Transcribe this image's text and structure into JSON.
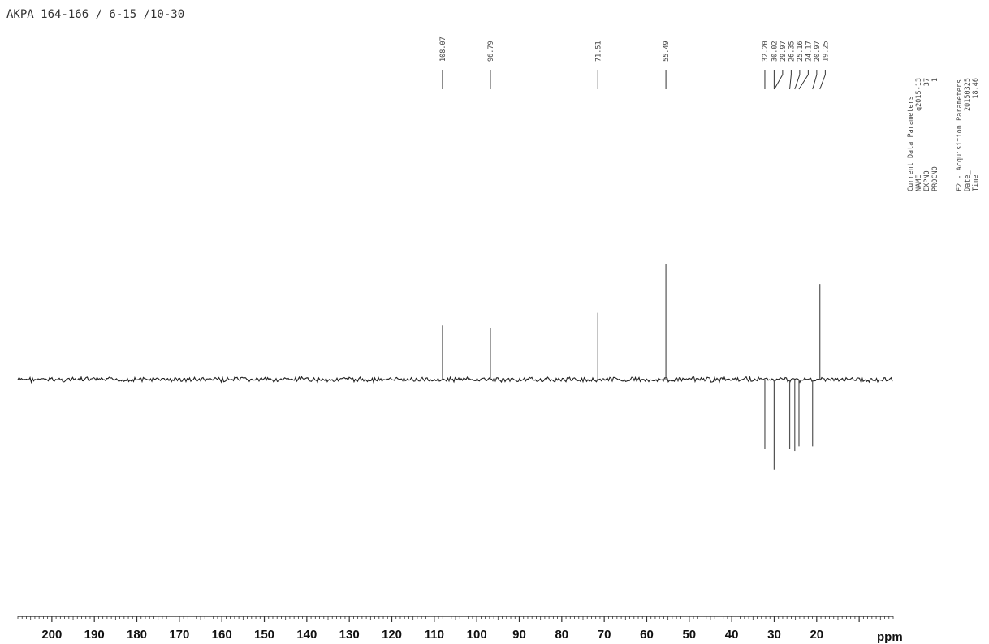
{
  "header": {
    "title": "AKPA 164-166 / 6-15 /10-30"
  },
  "parameters": {
    "section1_title": "Current Data Parameters",
    "name_label": "NAME",
    "name_value": "q2015-13",
    "expno_label": "EXPNO",
    "expno_value": "37",
    "procno_label": "PROCNO",
    "procno_value": "1",
    "section2_title": "F2 - Acquisition Parameters",
    "date_label": "Date_",
    "date_value": "20150325",
    "time_label": "Time",
    "time_value": "18.46"
  },
  "chart_data": {
    "type": "line",
    "xlabel": "ppm",
    "xlim": [
      208,
      2
    ],
    "x_reversed": true,
    "tick_values": [
      200,
      190,
      180,
      170,
      160,
      150,
      140,
      130,
      120,
      110,
      100,
      90,
      80,
      70,
      60,
      50,
      40,
      30,
      20
    ],
    "tick_labels": [
      "200",
      "190",
      "180",
      "170",
      "160",
      "150",
      "140",
      "130",
      "120",
      "110",
      "100",
      "90",
      "80",
      "70",
      "60",
      "50",
      "40",
      "30",
      "20"
    ],
    "grid": false,
    "peaks": [
      {
        "ppm": 108.07,
        "label": "108.07",
        "intensity": 0.47
      },
      {
        "ppm": 96.79,
        "label": "96.79",
        "intensity": 0.45
      },
      {
        "ppm": 71.51,
        "label": "71.51",
        "intensity": 0.58
      },
      {
        "ppm": 55.49,
        "label": "55.49",
        "intensity": 1.0
      },
      {
        "ppm": 32.2,
        "label": "32.20",
        "intensity": -0.6
      },
      {
        "ppm": 30.02,
        "label": "30.02",
        "intensity": -0.78
      },
      {
        "ppm": 29.97,
        "label": "29.97",
        "intensity": -0.7
      },
      {
        "ppm": 26.35,
        "label": "26.35",
        "intensity": -0.6
      },
      {
        "ppm": 25.16,
        "label": "25.16",
        "intensity": -0.62
      },
      {
        "ppm": 24.17,
        "label": "24.17",
        "intensity": -0.58
      },
      {
        "ppm": 20.97,
        "label": "20.97",
        "intensity": -0.58
      },
      {
        "ppm": 19.25,
        "label": "19.25",
        "intensity": 0.83
      }
    ]
  }
}
